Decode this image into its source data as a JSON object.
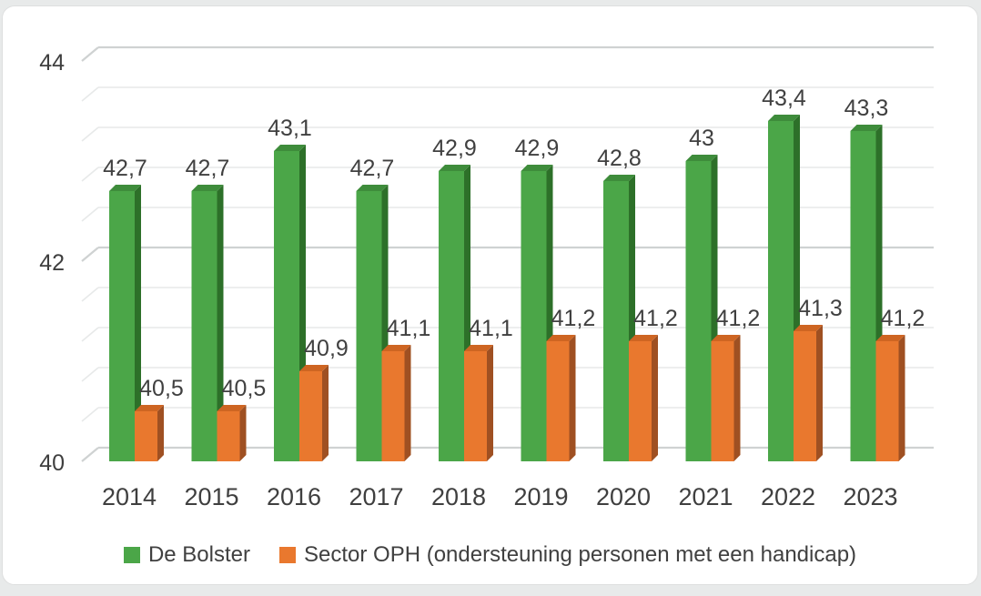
{
  "chart_data": {
    "type": "bar",
    "style": "3d-clustered-column",
    "title": "",
    "categories": [
      "2014",
      "2015",
      "2016",
      "2017",
      "2018",
      "2019",
      "2020",
      "2021",
      "2022",
      "2023"
    ],
    "series": [
      {
        "name": "De Bolster",
        "values": [
          42.7,
          42.7,
          43.1,
          42.7,
          42.9,
          42.9,
          42.8,
          43,
          43.4,
          43.3
        ],
        "labels": [
          "42,7",
          "42,7",
          "43,1",
          "42,7",
          "42,9",
          "42,9",
          "42,8",
          "43",
          "43,4",
          "43,3"
        ],
        "colors": {
          "front": "#4BA648",
          "top": "#3E8C3B",
          "side": "#2D7029"
        }
      },
      {
        "name": "Sector OPH (ondersteuning personen met een handicap)",
        "values": [
          40.5,
          40.5,
          40.9,
          41.1,
          41.1,
          41.2,
          41.2,
          41.2,
          41.3,
          41.2
        ],
        "labels": [
          "40,5",
          "40,5",
          "40,9",
          "41,1",
          "41,1",
          "41,2",
          "41,2",
          "41,2",
          "41,3",
          "41,2"
        ],
        "colors": {
          "front": "#E9782E",
          "top": "#CE6522",
          "side": "#9F5022"
        }
      }
    ],
    "y_axis": {
      "min": 40,
      "max": 44,
      "major_unit": 2,
      "minor_unit": 0.4,
      "tick_labels": [
        "40",
        "42",
        "44"
      ]
    },
    "legend_position": "bottom",
    "gridlines": {
      "major": true,
      "minor": true
    },
    "decimal_separator": ",",
    "palette": {
      "grid_major": "#CFD2D2",
      "grid_minor": "#E7E9E9",
      "text": "#3F3F3F",
      "background": "#FFFFFF",
      "frame": "#E8EAEA"
    }
  }
}
